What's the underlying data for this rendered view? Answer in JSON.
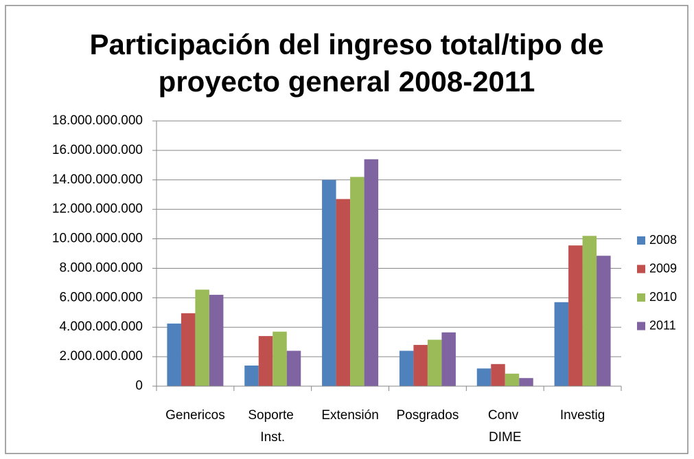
{
  "chart_data": {
    "type": "bar",
    "title": [
      "Participación del ingreso total/tipo de",
      "proyecto general 2008-2011"
    ],
    "categories": [
      "Genericos",
      "Soporte Inst.",
      "Extensión",
      "Posgrados",
      "Conv DIME",
      "Investig"
    ],
    "series": [
      {
        "name": "2008",
        "color": "#4f81bd",
        "values": [
          4250000000,
          1400000000,
          14000000000,
          2400000000,
          1200000000,
          5700000000
        ]
      },
      {
        "name": "2009",
        "color": "#c0504d",
        "values": [
          4950000000,
          3400000000,
          12700000000,
          2800000000,
          1500000000,
          9550000000
        ]
      },
      {
        "name": "2010",
        "color": "#9bbb59",
        "values": [
          6550000000,
          3700000000,
          14200000000,
          3150000000,
          850000000,
          10200000000
        ]
      },
      {
        "name": "2011",
        "color": "#8064a2",
        "values": [
          6200000000,
          2400000000,
          15400000000,
          3650000000,
          550000000,
          8850000000
        ]
      }
    ],
    "ylim": [
      0,
      18000000000
    ],
    "yticks": [
      0,
      {
        "value": 2000000000,
        "label": "2.000.000.000"
      },
      {
        "value": 4000000000,
        "label": "4.000.000.000"
      },
      {
        "value": 6000000000,
        "label": "6.000.000.000"
      },
      {
        "value": 8000000000,
        "label": "8.000.000.000"
      },
      {
        "value": 10000000000,
        "label": "10.000.000.000"
      },
      {
        "value": 12000000000,
        "label": "12.000.000.000"
      },
      {
        "value": 14000000000,
        "label": "14.000.000.000"
      },
      {
        "value": 16000000000,
        "label": "16.000.000.000"
      },
      {
        "value": 18000000000,
        "label": "18.000.000.000"
      }
    ],
    "grid": true,
    "legend": "right"
  }
}
